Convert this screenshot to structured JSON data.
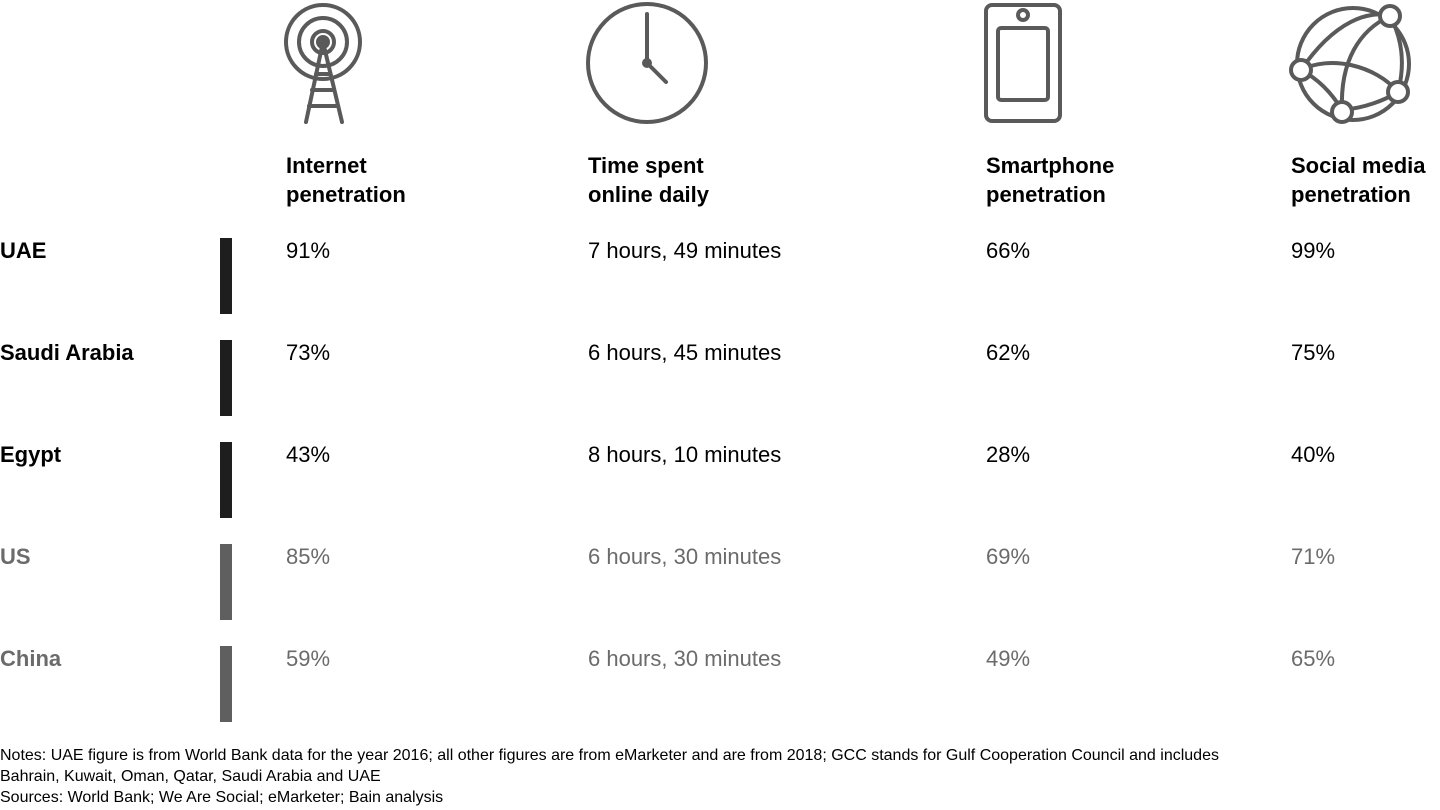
{
  "colors": {
    "dark_text": "#000000",
    "dark_bar": "#1e1e1e",
    "gray_text": "#6b6b6b",
    "gray_bar": "#5f5f5f",
    "icon_stroke": "#5a5a5a"
  },
  "columns": [
    {
      "icon": "antenna-tower-icon",
      "line1": "Internet",
      "line2": "penetration"
    },
    {
      "icon": "clock-icon",
      "line1": "Time spent",
      "line2": "online daily"
    },
    {
      "icon": "smartphone-icon",
      "line1": "Smartphone",
      "line2": "penetration"
    },
    {
      "icon": "social-network-globe-icon",
      "line1": "Social media",
      "line2": "penetration"
    }
  ],
  "rows": [
    {
      "country": "UAE",
      "style": "dark",
      "values": [
        "91%",
        "7 hours, 49 minutes",
        "66%",
        "99%"
      ]
    },
    {
      "country": "Saudi Arabia",
      "style": "dark",
      "values": [
        "73%",
        "6 hours, 45 minutes",
        "62%",
        "75%"
      ]
    },
    {
      "country": "Egypt",
      "style": "dark",
      "values": [
        "43%",
        "8 hours, 10 minutes",
        "28%",
        "40%"
      ]
    },
    {
      "country": "US",
      "style": "gray",
      "values": [
        "85%",
        "6 hours, 30 minutes",
        "69%",
        "71%"
      ]
    },
    {
      "country": "China",
      "style": "gray",
      "values": [
        "59%",
        "6 hours, 30 minutes",
        "49%",
        "65%"
      ]
    }
  ],
  "footnotes": {
    "notes_line1": "Notes: UAE figure is from World Bank data for the year 2016; all other figures are from eMarketer and are from 2018; GCC stands for Gulf Cooperation Council and includes",
    "notes_line2": "Bahrain, Kuwait, Oman, Qatar, Saudi Arabia and UAE",
    "sources": "Sources: World Bank; We Are Social; eMarketer; Bain analysis"
  }
}
